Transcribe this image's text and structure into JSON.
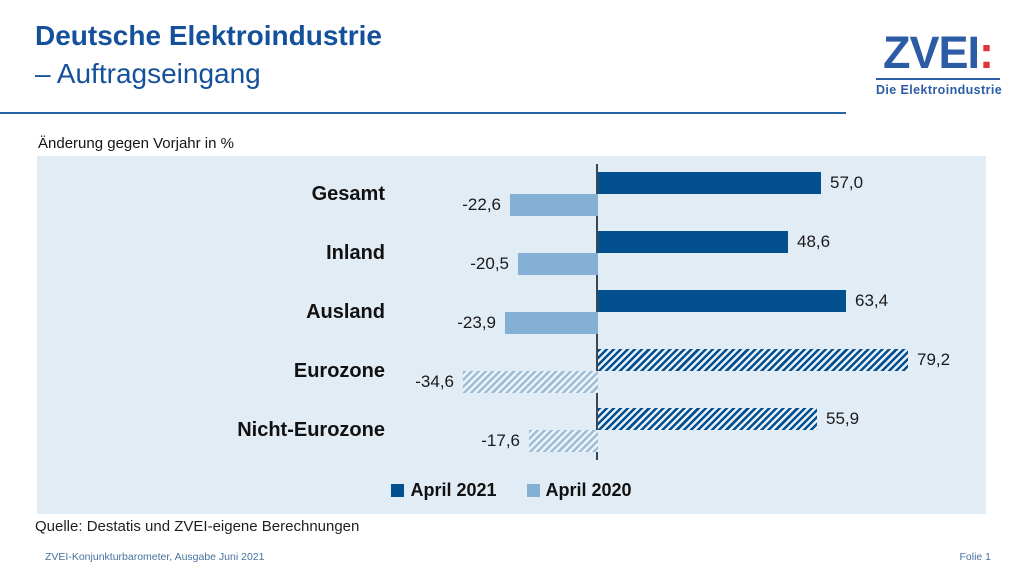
{
  "header": {
    "title_line1": "Deutsche Elektroindustrie",
    "title_line2": "– Auftragseingang",
    "logo": {
      "text": "ZVEI",
      "colon": ":",
      "subtitle": "Die Elektroindustrie"
    }
  },
  "note": "Änderung gegen Vorjahr in %",
  "chart_data": {
    "type": "bar",
    "orientation": "horizontal",
    "title": "Deutsche Elektroindustrie – Auftragseingang",
    "unit_note": "Änderung gegen Vorjahr in %",
    "categories": [
      "Gesamt",
      "Inland",
      "Ausland",
      "Eurozone",
      "Nicht-Eurozone"
    ],
    "series": [
      {
        "name": "April 2021",
        "color": "#02508f",
        "values": [
          57.0,
          48.6,
          63.4,
          79.2,
          55.9
        ],
        "labels": [
          "57,0",
          "48,6",
          "63,4",
          "79,2",
          "55,9"
        ]
      },
      {
        "name": "April 2020",
        "color": "#85b0d5",
        "values": [
          -22.6,
          -20.5,
          -23.9,
          -34.6,
          -17.6
        ],
        "labels": [
          "-22,6",
          "-20,5",
          "-23,9",
          "-34,6",
          "-17,6"
        ]
      }
    ],
    "hatched_categories": [
      "Eurozone",
      "Nicht-Eurozone"
    ],
    "xlim": [
      -40,
      100
    ],
    "grid": false,
    "legend_position": "bottom-center"
  },
  "source": "Quelle: Destatis und ZVEI-eigene Berechnungen",
  "footer": {
    "left": "ZVEI-Konjunkturbarometer, Ausgabe Juni 2021",
    "right": "Folie 1"
  },
  "colors": {
    "title_blue": "#15519b",
    "logo_blue": "#2d5ca6",
    "logo_red": "#e23438",
    "bar_dark": "#02508f",
    "bar_light": "#85b0d5",
    "panel_background": "#e2ecf5",
    "axis_line": "#3b4652",
    "footer_blue": "#47729e"
  }
}
